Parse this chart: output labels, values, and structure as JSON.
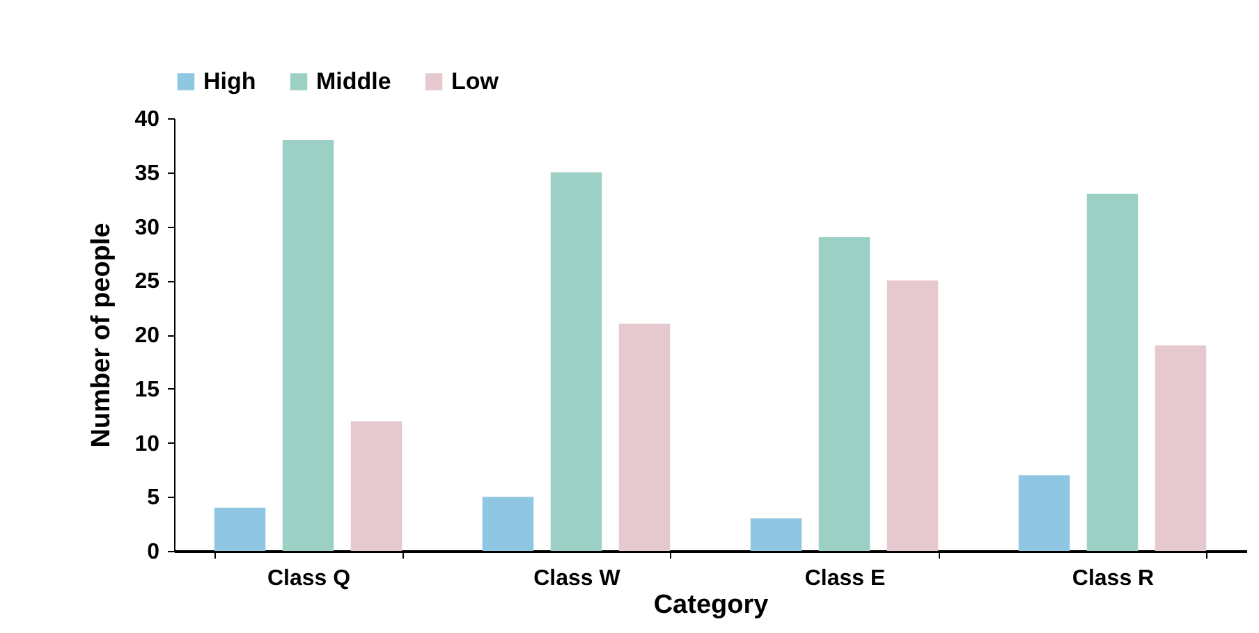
{
  "chart_data": {
    "type": "bar",
    "xlabel": "Category",
    "ylabel": "Number of people",
    "categories": [
      "Class Q",
      "Class W",
      "Class E",
      "Class R"
    ],
    "series": [
      {
        "name": "High",
        "color": "#8fc6e2",
        "values": [
          4,
          5,
          3,
          7
        ]
      },
      {
        "name": "Middle",
        "color": "#9dd0c4",
        "values": [
          38,
          35,
          29,
          33
        ]
      },
      {
        "name": "Low",
        "color": "#e6c8cf",
        "values": [
          12,
          21,
          25,
          19
        ]
      }
    ],
    "ylim": [
      0,
      40
    ],
    "yticks": [
      0,
      5,
      10,
      15,
      20,
      25,
      30,
      35,
      40
    ],
    "grid": false,
    "legend": "top"
  }
}
